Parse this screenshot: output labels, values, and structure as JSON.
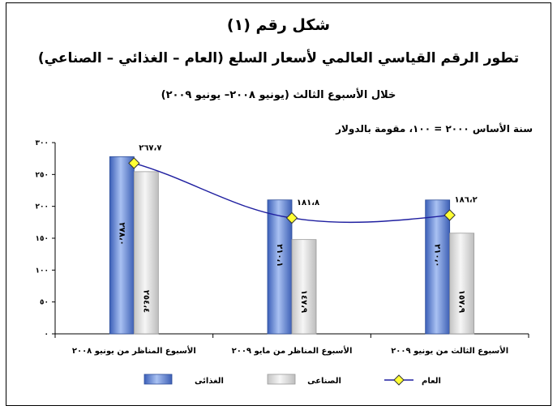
{
  "figure": {
    "label": "شكل رقم (١)",
    "title": "تطور الرقم القياسي العالمي لأسعار السلع (العام – الغذائي – الصناعي)",
    "subtitle": "خلال الأسبوع الثالث (يونيو ٢٠٠٨– يونيو ٢٠٠٩)",
    "base_note": "سنة الأساس ٢٠٠٠ = ١٠٠، مقومة بالدولار"
  },
  "chart_data": {
    "type": "bar",
    "categories": [
      "الأسبوع المناظر من يونيو ٢٠٠٨",
      "الأسبوع المناظر من مايو ٢٠٠٩",
      "الأسبوع الثالث من يونيو ٢٠٠٩"
    ],
    "ylim": [
      0,
      300
    ],
    "yticks": [
      0,
      50,
      100,
      150,
      200,
      250,
      300
    ],
    "ytick_labels": [
      "٠",
      "٥٠",
      "١٠٠",
      "١٥٠",
      "٢٠٠",
      "٢٥٠",
      "٣٠٠"
    ],
    "grid": false,
    "legend_position": "bottom",
    "series": [
      {
        "name": "الغذائى",
        "kind": "bar",
        "color": "#5b7fd6",
        "values": [
          278.0,
          210.1,
          210.0
        ],
        "labels": [
          "٢٧٨،٠",
          "٢١٠،١",
          "٢١٠،٠"
        ]
      },
      {
        "name": "الصناعى",
        "kind": "bar",
        "color": "#d9d9d9",
        "values": [
          254.4,
          147.9,
          157.9
        ],
        "labels": [
          "٢٥٤،٤",
          "١٤٧،٩",
          "١٥٧،٩"
        ]
      },
      {
        "name": "العام",
        "kind": "line",
        "color": "#1f1fa0",
        "marker_color": "#ffff33",
        "values": [
          267.7,
          181.8,
          186.2
        ],
        "labels": [
          "٢٦٧،٧",
          "١٨١،٨",
          "١٨٦،٢"
        ]
      }
    ]
  }
}
